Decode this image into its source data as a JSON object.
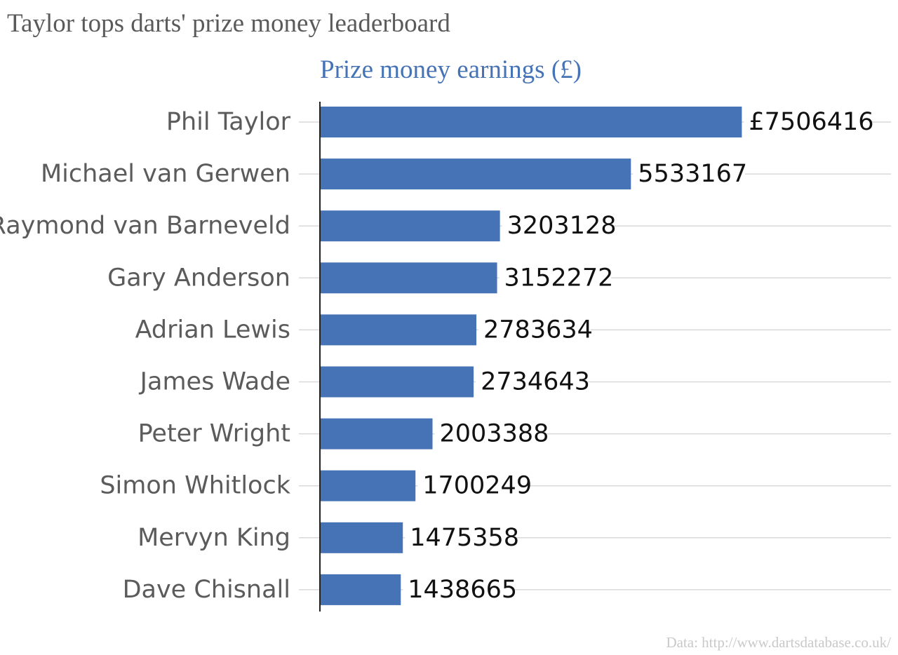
{
  "title": "Taylor tops darts' prize money leaderboard",
  "source": "Data: http://www.dartsdatabase.co.uk/",
  "chart_data": {
    "type": "bar",
    "orientation": "horizontal",
    "title": "Prize money earnings (£)",
    "categories": [
      "Phil Taylor",
      "Michael van Gerwen",
      "Raymond van Barneveld",
      "Gary Anderson",
      "Adrian Lewis",
      "James Wade",
      "Peter Wright",
      "Simon Whitlock",
      "Mervyn King",
      "Dave Chisnall"
    ],
    "values": [
      7506416,
      5533167,
      3203128,
      3152272,
      2783634,
      2734643,
      2003388,
      1700249,
      1475358,
      1438665
    ],
    "value_labels": [
      "£7506416",
      "5533167",
      "3203128",
      "3152272",
      "2783634",
      "2734643",
      "2003388",
      "1700249",
      "1475358",
      "1438665"
    ],
    "xlim": [
      0,
      10160000
    ],
    "grid": true,
    "bar_color": "#4573b5"
  }
}
